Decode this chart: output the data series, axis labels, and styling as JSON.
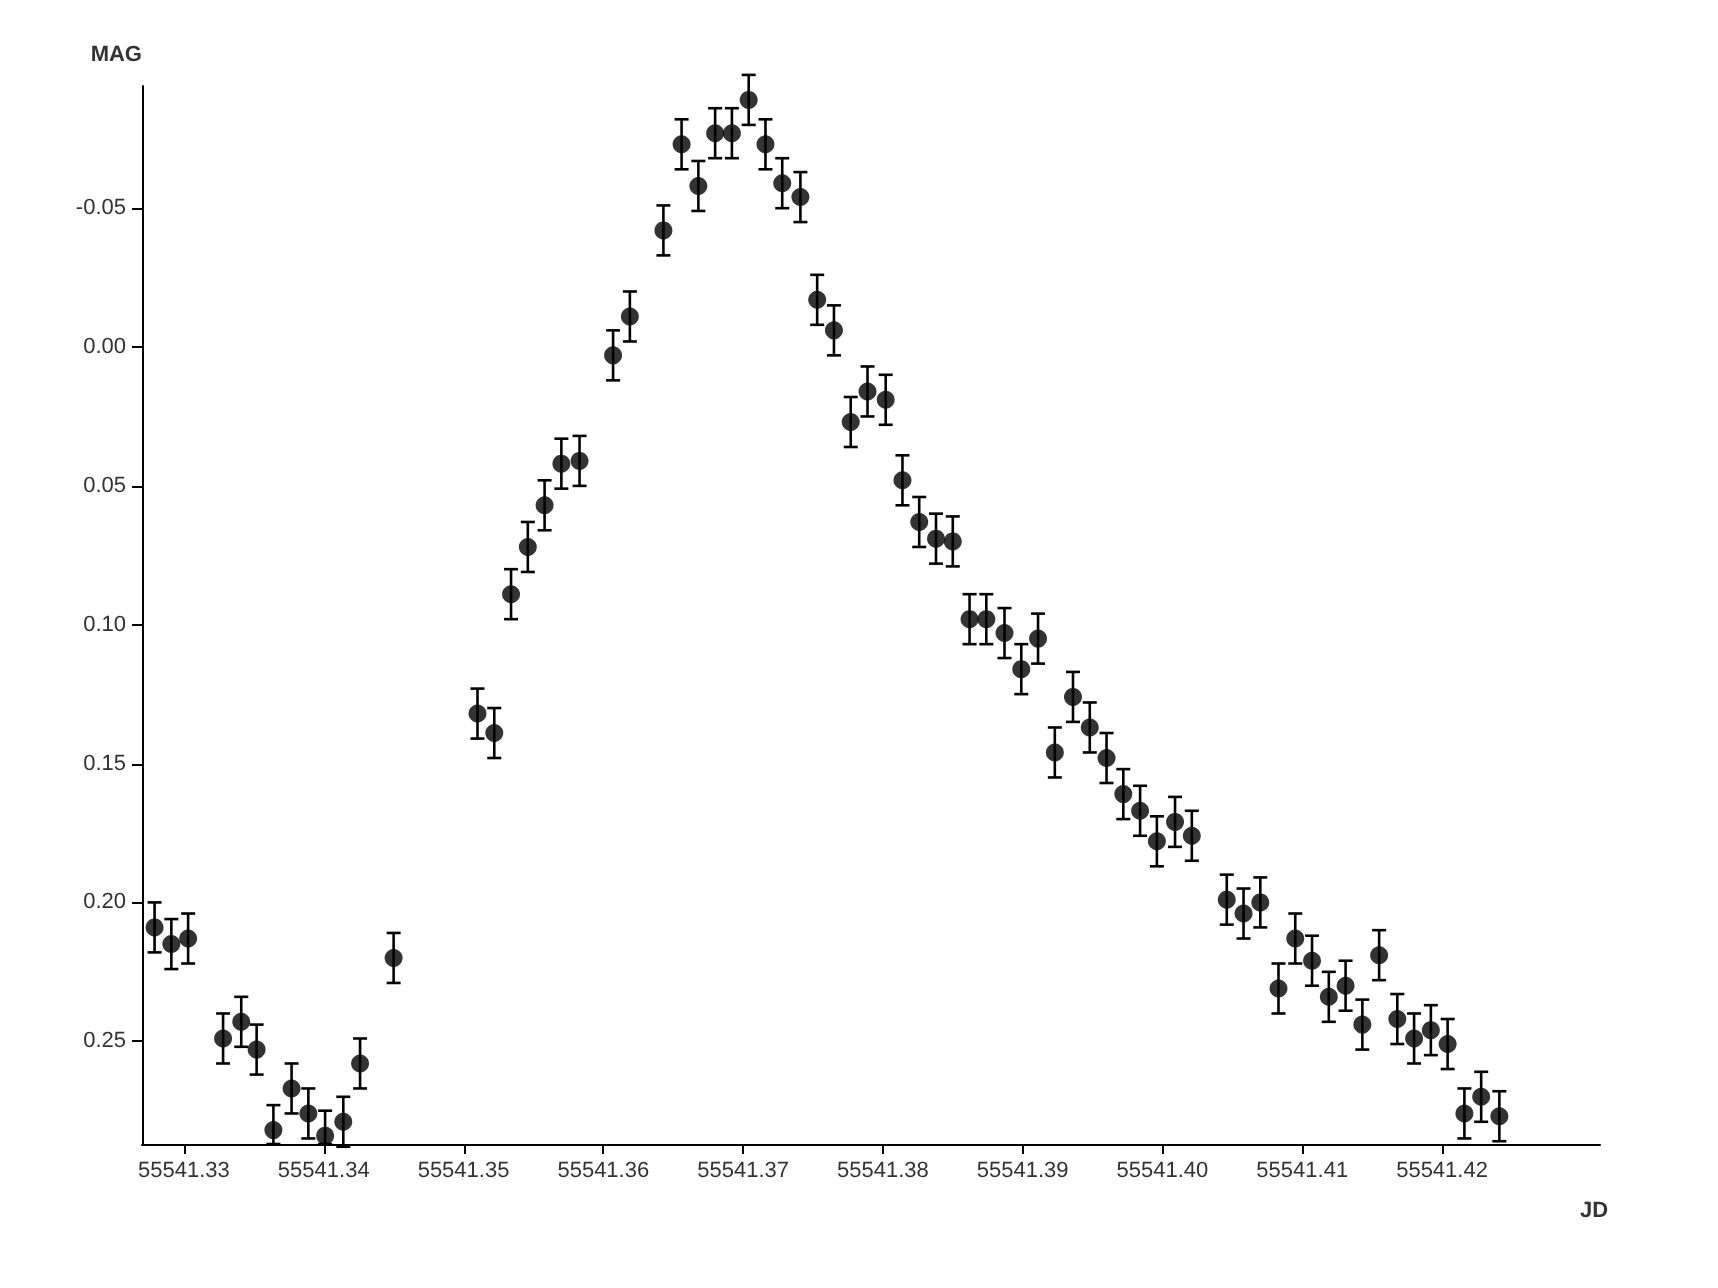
{
  "chart_data": {
    "type": "scatter",
    "xlabel": "JD",
    "ylabel": "MAG",
    "marker": "circle",
    "xlim": [
      55541.327,
      55541.4313
    ],
    "ylim": [
      0.287,
      -0.094
    ],
    "xticks": [
      {
        "value": 55541.33,
        "label": "55541.33"
      },
      {
        "value": 55541.34,
        "label": "55541.34"
      },
      {
        "value": 55541.35,
        "label": "55541.35"
      },
      {
        "value": 55541.36,
        "label": "55541.36"
      },
      {
        "value": 55541.37,
        "label": "55541.37"
      },
      {
        "value": 55541.38,
        "label": "55541.38"
      },
      {
        "value": 55541.39,
        "label": "55541.39"
      },
      {
        "value": 55541.4,
        "label": "55541.40"
      },
      {
        "value": 55541.41,
        "label": "55541.41"
      },
      {
        "value": 55541.42,
        "label": "55541.42"
      }
    ],
    "yticks": [
      {
        "value": -0.05,
        "label": "-0.05"
      },
      {
        "value": 0,
        "label": "0.00"
      },
      {
        "value": 0.05,
        "label": "0.05"
      },
      {
        "value": 0.1,
        "label": "0.10"
      },
      {
        "value": 0.15,
        "label": "0.15"
      },
      {
        "value": 0.2,
        "label": "0.20"
      },
      {
        "value": 0.25,
        "label": "0.25"
      }
    ],
    "series": [
      {
        "color": "#000000",
        "x": [
          55541.3279,
          55541.3291,
          55541.3303,
          55541.3328,
          55541.3341,
          55541.3352,
          55541.3364,
          55541.3377,
          55541.3389,
          55541.3401,
          55541.3414,
          55541.3426,
          55541.345,
          55541.351,
          55541.3522,
          55541.3534,
          55541.3546,
          55541.3558,
          55541.357,
          55541.3583,
          55541.3607,
          55541.3619,
          55541.3643,
          55541.3656,
          55541.3668,
          55541.368,
          55541.3692,
          55541.3704,
          55541.3716,
          55541.3728,
          55541.3741,
          55541.3753,
          55541.3765,
          55541.3777,
          55541.3789,
          55541.3802,
          55541.3814,
          55541.3826,
          55541.3838,
          55541.385,
          55541.3862,
          55541.3874,
          55541.3887,
          55541.3899,
          55541.3911,
          55541.3923,
          55541.3936,
          55541.3948,
          55541.396,
          55541.3972,
          55541.3984,
          55541.3996,
          55541.4009,
          55541.4021,
          55541.4046,
          55541.4058,
          55541.407,
          55541.4083,
          55541.4095,
          55541.4107,
          55541.4119,
          55541.4131,
          55541.4143,
          55541.4155,
          55541.4168,
          55541.418,
          55541.4192,
          55541.4204,
          55541.4216,
          55541.4228,
          55541.4241
        ],
        "values": [
          0.209,
          0.215,
          0.213,
          0.249,
          0.243,
          0.253,
          0.282,
          0.267,
          0.276,
          0.284,
          0.279,
          0.258,
          0.22,
          0.132,
          0.139,
          0.089,
          0.072,
          0.057,
          0.042,
          0.041,
          0.003,
          -0.011,
          -0.042,
          -0.073,
          -0.058,
          -0.077,
          -0.077,
          -0.089,
          -0.073,
          -0.059,
          -0.054,
          -0.017,
          -0.006,
          0.027,
          0.016,
          0.019,
          0.048,
          0.063,
          0.069,
          0.07,
          0.098,
          0.098,
          0.103,
          0.116,
          0.105,
          0.146,
          0.126,
          0.137,
          0.148,
          0.161,
          0.167,
          0.178,
          0.171,
          0.176,
          0.199,
          0.204,
          0.2,
          0.231,
          0.213,
          0.221,
          0.234,
          0.23,
          0.244,
          0.219,
          0.242,
          0.249,
          0.246,
          0.251,
          0.276,
          0.27,
          0.277
        ],
        "errors": [
          0.009,
          0.009,
          0.009,
          0.009,
          0.009,
          0.009,
          [
            0.273,
            0.287
          ],
          0.009,
          0.009,
          [
            0.275,
            0.287
          ],
          0.009,
          0.009,
          0.009,
          0.009,
          0.009,
          0.009,
          0.009,
          0.009,
          0.009,
          0.009,
          0.009,
          0.009,
          0.009,
          0.009,
          0.009,
          0.009,
          0.009,
          0.009,
          0.009,
          0.009,
          0.009,
          0.009,
          0.009,
          0.009,
          0.009,
          0.009,
          0.009,
          0.009,
          0.009,
          0.009,
          0.009,
          0.009,
          0.009,
          0.009,
          0.009,
          0.009,
          0.009,
          0.009,
          0.009,
          0.009,
          0.009,
          0.009,
          0.009,
          0.009,
          0.009,
          0.009,
          0.009,
          0.009,
          0.009,
          0.009,
          0.009,
          0.009,
          0.009,
          0.009,
          0.009,
          0.009,
          0.009,
          0.009,
          0.009,
          0.009,
          0.009
        ]
      }
    ]
  }
}
